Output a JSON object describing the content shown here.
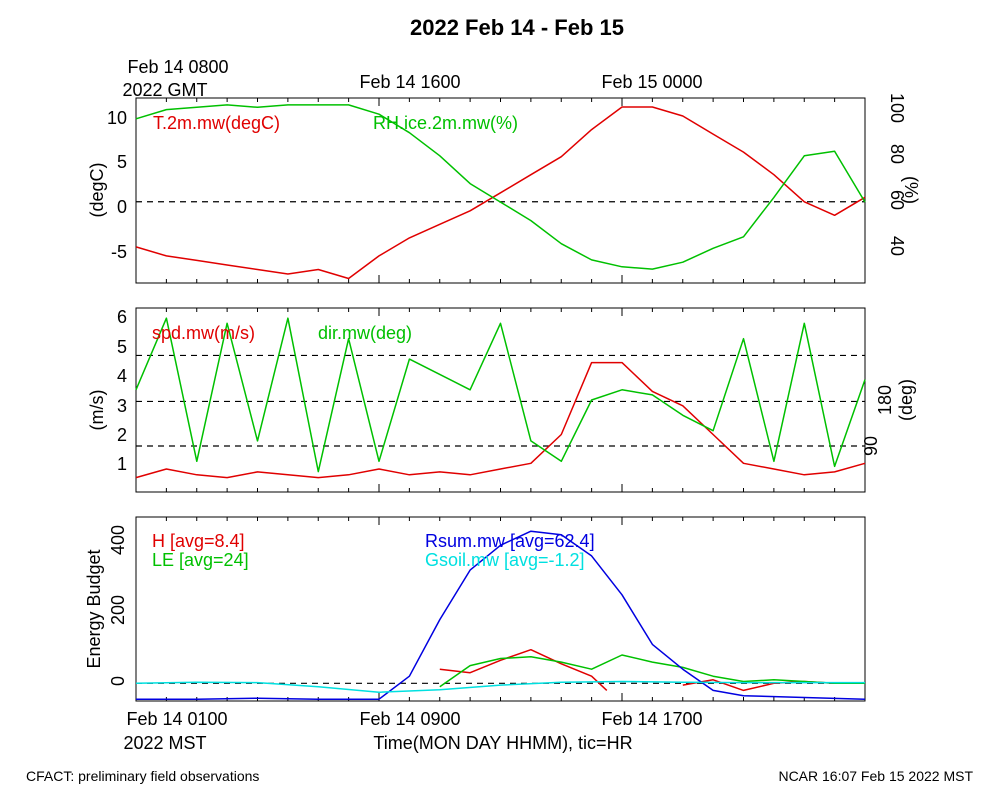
{
  "title": "2022 Feb 14 - Feb 15",
  "top_axis": {
    "line1": [
      "Feb 14 0800",
      "Feb 14 1600",
      "Feb 15 0000"
    ],
    "line2": "2022 GMT"
  },
  "bottom_axis": {
    "line1": [
      "Feb 14 0100",
      "Feb 14 0900",
      "Feb 14 1700"
    ],
    "line2": "2022 MST",
    "xlabel": "Time(MON DAY HHMM), tic=HR"
  },
  "footer": {
    "left": "CFACT: preliminary field observations",
    "right": "NCAR 16:07 Feb 15 2022 MST"
  },
  "colors": {
    "red": "#e00000",
    "green": "#00c000",
    "blue": "#0000e0",
    "cyan": "#00e0e0"
  },
  "chart_data": [
    {
      "type": "line",
      "ylabel_left": "(degC)",
      "ylabel_right": "(%)",
      "ylim_left": [
        -9,
        11.5
      ],
      "ylim_right": [
        25,
        105
      ],
      "yticks_left": [
        "10",
        "5",
        "0",
        "-5"
      ],
      "yticks_right": [
        "100",
        "80",
        "60",
        "40"
      ],
      "xlim_hours": [
        0,
        24
      ],
      "series": [
        {
          "name": "T.2m.mw(degC)",
          "color": "red",
          "axis": "left",
          "x": [
            0,
            1,
            2,
            3,
            4,
            5,
            6,
            7,
            8,
            9,
            10,
            11,
            12,
            13,
            14,
            15,
            16,
            17,
            18,
            19,
            20,
            21,
            22,
            23,
            24
          ],
          "y": [
            -5,
            -6,
            -6.5,
            -7,
            -7.5,
            -8,
            -7.5,
            -8.5,
            -6,
            -4,
            -2.5,
            -1,
            1,
            3,
            5,
            8,
            10.5,
            10.5,
            9.5,
            7.5,
            5.5,
            3,
            0,
            -1.5,
            0.5
          ]
        },
        {
          "name": "RH.ice.2m.mw(%)",
          "color": "green",
          "axis": "right",
          "x": [
            0,
            1,
            2,
            3,
            4,
            5,
            6,
            7,
            8,
            9,
            10,
            11,
            12,
            13,
            14,
            15,
            16,
            17,
            18,
            19,
            20,
            21,
            22,
            23,
            24
          ],
          "y": [
            96,
            100,
            101,
            102,
            101,
            102,
            102,
            102,
            98,
            90,
            80,
            68,
            60,
            52,
            42,
            35,
            32,
            31,
            34,
            40,
            45,
            62,
            80,
            82,
            60
          ]
        }
      ],
      "zero_line": 0
    },
    {
      "type": "line",
      "ylabel_left": "(m/s)",
      "ylabel_right": "(deg)",
      "ylim_left": [
        0,
        6.4
      ],
      "yticks_left": [
        "1",
        "2",
        "3",
        "4",
        "5",
        "6"
      ],
      "ylim_right": [
        0,
        360
      ],
      "yticks_right": [
        "90",
        "180"
      ],
      "xlim_hours": [
        0,
        24
      ],
      "hlines_left": [
        1.6,
        3.15,
        4.75
      ],
      "series": [
        {
          "name": "spd.mw(m/s)",
          "color": "red",
          "axis": "left",
          "x": [
            0,
            1,
            2,
            3,
            4,
            5,
            6,
            7,
            8,
            9,
            10,
            11,
            12,
            13,
            14,
            15,
            16,
            17,
            18,
            19,
            20,
            21,
            22,
            23,
            24
          ],
          "y": [
            0.5,
            0.8,
            0.6,
            0.5,
            0.7,
            0.6,
            0.5,
            0.6,
            0.8,
            0.6,
            0.7,
            0.6,
            0.8,
            1.0,
            2.0,
            4.5,
            4.5,
            3.5,
            3.0,
            2.0,
            1.0,
            0.8,
            0.6,
            0.7,
            1.0
          ]
        },
        {
          "name": "dir.mw(deg)",
          "color": "green",
          "axis": "right",
          "x": [
            0,
            1,
            2,
            3,
            4,
            5,
            6,
            7,
            8,
            9,
            10,
            11,
            12,
            13,
            14,
            15,
            16,
            17,
            18,
            19,
            20,
            21,
            22,
            23,
            24
          ],
          "y": [
            200,
            340,
            60,
            330,
            100,
            340,
            40,
            300,
            60,
            260,
            230,
            200,
            330,
            100,
            60,
            180,
            200,
            190,
            150,
            120,
            300,
            60,
            330,
            50,
            220
          ]
        }
      ]
    },
    {
      "type": "line",
      "ylabel_left": "Energy Budget",
      "ylim_left": [
        -50,
        470
      ],
      "yticks_left": [
        "0",
        "200",
        "400"
      ],
      "xlim_hours": [
        0,
        24
      ],
      "zero_line": 0,
      "series": [
        {
          "name": "H [avg=8.4]",
          "color": "red",
          "x": [
            10,
            11,
            12,
            13,
            14,
            15,
            15.5,
            17,
            18,
            19,
            20,
            21,
            22,
            23,
            24
          ],
          "y": [
            40,
            30,
            65,
            95,
            55,
            20,
            -20,
            null,
            -5,
            10,
            -20,
            0,
            5,
            0,
            0
          ]
        },
        {
          "name": "LE [avg=24]",
          "color": "green",
          "x": [
            10,
            11,
            12,
            13,
            14,
            15,
            16,
            17,
            18,
            19,
            20,
            21,
            22,
            23,
            24
          ],
          "y": [
            -10,
            50,
            70,
            75,
            60,
            40,
            80,
            60,
            45,
            20,
            5,
            10,
            5,
            0,
            0
          ]
        },
        {
          "name": "Rsum.mw [avg=62.4]",
          "color": "blue",
          "x": [
            0,
            2,
            4,
            6,
            7,
            8,
            9,
            10,
            11,
            12,
            13,
            14,
            15,
            16,
            17,
            18,
            19,
            20,
            22,
            24
          ],
          "y": [
            -45,
            -45,
            -42,
            -45,
            -45,
            -45,
            20,
            180,
            320,
            390,
            430,
            420,
            360,
            250,
            110,
            40,
            -20,
            -35,
            -40,
            -45
          ]
        },
        {
          "name": "Gsoil.mw [avg=-1.2]",
          "color": "cyan",
          "x": [
            0,
            2,
            4,
            6,
            8,
            10,
            12,
            14,
            16,
            18,
            20,
            22,
            24
          ],
          "y": [
            0,
            3,
            2,
            -10,
            -25,
            -18,
            -5,
            3,
            5,
            3,
            2,
            2,
            2
          ]
        }
      ]
    }
  ]
}
